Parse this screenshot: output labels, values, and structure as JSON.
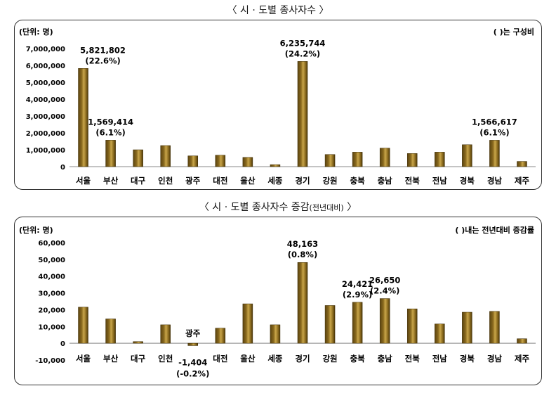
{
  "chart_data": [
    {
      "type": "bar",
      "title": "〈 시 · 도별 종사자수 〉",
      "unit_label": "(단위: 명)",
      "note": "(      )는 구성비",
      "categories": [
        "서울",
        "부산",
        "대구",
        "인천",
        "광주",
        "대전",
        "울산",
        "세종",
        "경기",
        "강원",
        "충북",
        "충남",
        "전북",
        "전남",
        "경북",
        "경남",
        "제주"
      ],
      "values": [
        5821802,
        1569414,
        1000000,
        1250000,
        640000,
        680000,
        550000,
        120000,
        6235744,
        720000,
        860000,
        1100000,
        780000,
        860000,
        1300000,
        1566617,
        310000
      ],
      "ylim": [
        0,
        7000000
      ],
      "yticks": [
        0,
        1000000,
        2000000,
        3000000,
        4000000,
        5000000,
        6000000,
        7000000
      ],
      "ytick_labels": [
        "0",
        "1,000,000",
        "2,000,000",
        "3,000,000",
        "4,000,000",
        "5,000,000",
        "6,000,000",
        "7,000,000"
      ],
      "annotations": [
        {
          "index": 0,
          "value_text": "5,821,802",
          "pct_text": "(22.6%)"
        },
        {
          "index": 1,
          "value_text": "1,569,414",
          "pct_text": "(6.1%)"
        },
        {
          "index": 8,
          "value_text": "6,235,744",
          "pct_text": "(24.2%)"
        },
        {
          "index": 15,
          "value_text": "1,566,617",
          "pct_text": "(6.1%)"
        }
      ],
      "grid": false,
      "bar_color": "#8a6a1e"
    },
    {
      "type": "bar",
      "title_main": "〈 시 · 도별 종사자수 증감",
      "title_small": "(전년대비)",
      "title_end": " 〉",
      "unit_label": "(단위: 명)",
      "note": "(        )내는 전년대비 증감률",
      "categories": [
        "서울",
        "부산",
        "대구",
        "인천",
        "광주",
        "대전",
        "울산",
        "세종",
        "경기",
        "강원",
        "충북",
        "충남",
        "전북",
        "전남",
        "경북",
        "경남",
        "제주"
      ],
      "values": [
        21500,
        14500,
        1000,
        11000,
        -1404,
        9000,
        23500,
        11000,
        48163,
        22500,
        24421,
        26650,
        20500,
        11500,
        18500,
        19000,
        2700
      ],
      "ylim": [
        -10000,
        60000
      ],
      "yticks": [
        -10000,
        0,
        10000,
        20000,
        30000,
        40000,
        50000,
        60000
      ],
      "ytick_labels": [
        "-10,000",
        "0",
        "10,000",
        "20,000",
        "30,000",
        "40,000",
        "50,000",
        "60,000"
      ],
      "annotations": [
        {
          "index": 8,
          "value_text": "48,163",
          "pct_text": "(0.8%)"
        },
        {
          "index": 10,
          "value_text": "24,421",
          "pct_text": "(2.9%)"
        },
        {
          "index": 11,
          "value_text": "26,650",
          "pct_text": "(2.4%)"
        },
        {
          "index": 4,
          "value_text": "-1,404",
          "pct_text": "(-0.2%)"
        }
      ],
      "grid": false,
      "bar_color": "#8a6a1e"
    }
  ]
}
